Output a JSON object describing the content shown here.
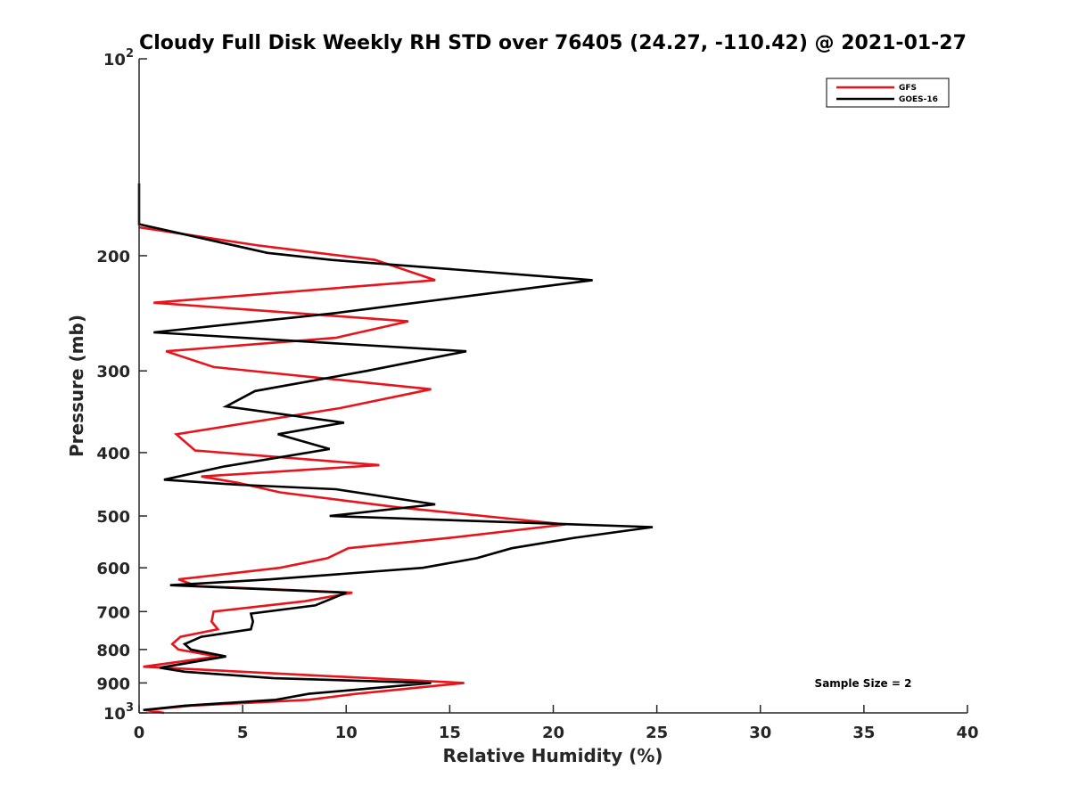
{
  "chart_data": {
    "type": "line",
    "title": "Cloudy Full Disk Weekly RH STD over 76405 (24.27, -110.42) @ 2021-01-27",
    "xlabel": "Relative Humidity (%)",
    "ylabel": "Pressure (mb)",
    "xlim": [
      0,
      40
    ],
    "ylim": [
      100,
      1000
    ],
    "y_scale": "log",
    "y_reversed": true,
    "grid": false,
    "legend_position": "top-right",
    "x_ticks": [
      "0",
      "5",
      "10",
      "15",
      "20",
      "25",
      "30",
      "35",
      "40"
    ],
    "y_ticks": [
      {
        "value": 100,
        "base": "10",
        "exp": "2"
      },
      {
        "value": 200,
        "label": "200"
      },
      {
        "value": 300,
        "label": "300"
      },
      {
        "value": 400,
        "label": "400"
      },
      {
        "value": 500,
        "label": "500"
      },
      {
        "value": 600,
        "label": "600"
      },
      {
        "value": 700,
        "label": "700"
      },
      {
        "value": 800,
        "label": "800"
      },
      {
        "value": 900,
        "label": "900"
      },
      {
        "value": 1000,
        "base": "10",
        "exp": "3"
      }
    ],
    "annotation": "Sample Size = 2",
    "series": [
      {
        "name": "GFS",
        "color": "#e8141b",
        "points": [
          [
            1.2,
            1000
          ],
          [
            0.3,
            990
          ],
          [
            2.5,
            975
          ],
          [
            8.2,
            955
          ],
          [
            10.5,
            935
          ],
          [
            15.7,
            900
          ],
          [
            0.2,
            850
          ],
          [
            3.8,
            820
          ],
          [
            1.9,
            800
          ],
          [
            1.6,
            785
          ],
          [
            2.0,
            765
          ],
          [
            3.8,
            745
          ],
          [
            3.5,
            725
          ],
          [
            3.6,
            700
          ],
          [
            8.0,
            675
          ],
          [
            10.3,
            655
          ],
          [
            2.8,
            640
          ],
          [
            1.9,
            625
          ],
          [
            6.8,
            600
          ],
          [
            9.1,
            580
          ],
          [
            10.1,
            560
          ],
          [
            15.0,
            540
          ],
          [
            20.6,
            515
          ],
          [
            12.5,
            485
          ],
          [
            6.8,
            460
          ],
          [
            4.8,
            445
          ],
          [
            3.0,
            435
          ],
          [
            11.6,
            418
          ],
          [
            2.7,
            397
          ],
          [
            1.8,
            375
          ],
          [
            9.7,
            342
          ],
          [
            14.1,
            320
          ],
          [
            3.6,
            296
          ],
          [
            1.3,
            280
          ],
          [
            9.5,
            267
          ],
          [
            13.0,
            252
          ],
          [
            0.7,
            236
          ],
          [
            14.3,
            218
          ],
          [
            11.4,
            203
          ],
          [
            5.8,
            193
          ],
          [
            0.0,
            181
          ]
        ]
      },
      {
        "name": "GOES-16",
        "color": "#000000",
        "points": [
          [
            0.2,
            990
          ],
          [
            2.2,
            975
          ],
          [
            6.6,
            955
          ],
          [
            8.2,
            935
          ],
          [
            14.1,
            900
          ],
          [
            6.5,
            885
          ],
          [
            2.2,
            865
          ],
          [
            1.0,
            853
          ],
          [
            4.2,
            820
          ],
          [
            2.5,
            800
          ],
          [
            2.2,
            785
          ],
          [
            3.0,
            765
          ],
          [
            5.4,
            745
          ],
          [
            5.5,
            725
          ],
          [
            5.4,
            705
          ],
          [
            8.5,
            685
          ],
          [
            10.0,
            655
          ],
          [
            1.5,
            638
          ],
          [
            6.3,
            625
          ],
          [
            13.7,
            600
          ],
          [
            16.3,
            580
          ],
          [
            18.0,
            560
          ],
          [
            21.0,
            540
          ],
          [
            24.8,
            520
          ],
          [
            9.2,
            500
          ],
          [
            14.3,
            480
          ],
          [
            9.5,
            455
          ],
          [
            4.8,
            448
          ],
          [
            1.2,
            440
          ],
          [
            4.1,
            420
          ],
          [
            9.2,
            395
          ],
          [
            6.7,
            375
          ],
          [
            9.9,
            360
          ],
          [
            4.2,
            340
          ],
          [
            5.6,
            322
          ],
          [
            11.0,
            300
          ],
          [
            15.8,
            280
          ],
          [
            0.7,
            262
          ],
          [
            9.4,
            245
          ],
          [
            21.9,
            218
          ],
          [
            9.3,
            203
          ],
          [
            6.2,
            198
          ],
          [
            0.0,
            179
          ],
          [
            0.0,
            155
          ]
        ]
      }
    ]
  }
}
